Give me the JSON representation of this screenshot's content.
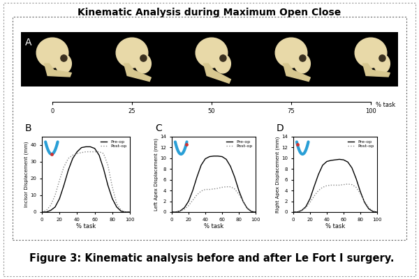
{
  "title": "Kinematic Analysis during Maximum Open Close",
  "panel_a": {
    "label": "A",
    "xlim": [
      0,
      100
    ],
    "xticks": [
      0,
      25,
      50,
      75,
      100
    ],
    "x_label": "% task"
  },
  "chart_data": [
    {
      "label": "B",
      "type": "line",
      "x": [
        0,
        5,
        10,
        15,
        20,
        25,
        30,
        35,
        40,
        45,
        50,
        55,
        60,
        65,
        70,
        75,
        80,
        85,
        90,
        95,
        100
      ],
      "x_label": "% task",
      "y_label": "Incisor Displacement (mm)",
      "xlim": [
        0,
        100
      ],
      "xticks": [
        0,
        20,
        40,
        60,
        80,
        100
      ],
      "ylim": [
        0,
        45
      ],
      "yticks": [
        0,
        10,
        20,
        30,
        40
      ],
      "legend": "upper right",
      "series": [
        {
          "name": "Pre-op",
          "color": "#000000",
          "line_style": "solid",
          "values": [
            0,
            0,
            1,
            3,
            8,
            16,
            25,
            32,
            36,
            38.5,
            39,
            39,
            38,
            34,
            26,
            16,
            8,
            3,
            0.5,
            0,
            0
          ]
        },
        {
          "name": "Post-op",
          "color": "#888888",
          "line_style": "dotted",
          "values": [
            0,
            1,
            4,
            10,
            19,
            27,
            32,
            34,
            35,
            35.5,
            36,
            36,
            36,
            36,
            35,
            28,
            15,
            5,
            1,
            0,
            0
          ]
        }
      ]
    },
    {
      "label": "C",
      "type": "line",
      "x": [
        0,
        5,
        10,
        15,
        20,
        25,
        30,
        35,
        40,
        45,
        50,
        55,
        60,
        65,
        70,
        75,
        80,
        85,
        90,
        95,
        100
      ],
      "x_label": "% task",
      "y_label": "Left Apex Displacement (mm)",
      "xlim": [
        0,
        100
      ],
      "xticks": [
        0,
        20,
        40,
        60,
        80,
        100
      ],
      "ylim": [
        0,
        14
      ],
      "yticks": [
        0,
        2,
        4,
        6,
        8,
        10,
        12,
        14
      ],
      "legend": "upper right",
      "series": [
        {
          "name": "Pre-op",
          "color": "#000000",
          "line_style": "solid",
          "values": [
            0,
            0,
            0.2,
            0.8,
            2,
            4,
            6.5,
            8.7,
            9.9,
            10.3,
            10.4,
            10.4,
            10.3,
            9.8,
            8.5,
            6.5,
            4,
            2,
            0.7,
            0.1,
            0
          ]
        },
        {
          "name": "Post-op",
          "color": "#888888",
          "line_style": "dotted",
          "values": [
            0,
            0,
            0.2,
            0.5,
            1.2,
            2.2,
            3.2,
            3.9,
            4.2,
            4.2,
            4.3,
            4.4,
            4.6,
            4.7,
            4.7,
            4.3,
            3.3,
            2,
            0.8,
            0.2,
            0
          ]
        }
      ]
    },
    {
      "label": "D",
      "type": "line",
      "x": [
        0,
        5,
        10,
        15,
        20,
        25,
        30,
        35,
        40,
        45,
        50,
        55,
        60,
        65,
        70,
        75,
        80,
        85,
        90,
        95,
        100
      ],
      "x_label": "% task",
      "y_label": "Right Apex Displacement (mm)",
      "xlim": [
        0,
        100
      ],
      "xticks": [
        0,
        20,
        40,
        60,
        80,
        100
      ],
      "ylim": [
        0,
        14
      ],
      "yticks": [
        0,
        2,
        4,
        6,
        8,
        10,
        12,
        14
      ],
      "legend": "upper right",
      "series": [
        {
          "name": "Pre-op",
          "color": "#000000",
          "line_style": "solid",
          "values": [
            0,
            0,
            0.3,
            1,
            2.5,
            4.8,
            7,
            8.7,
            9.4,
            9.6,
            9.7,
            9.8,
            9.7,
            9.3,
            8.2,
            6.2,
            3.8,
            1.8,
            0.6,
            0.1,
            0
          ]
        },
        {
          "name": "Post-op",
          "color": "#888888",
          "line_style": "dotted",
          "values": [
            0,
            0,
            0.3,
            0.8,
            1.8,
            3,
            4,
            4.6,
            4.9,
            5,
            5,
            5,
            5.1,
            5.2,
            5.1,
            4.6,
            3.4,
            2,
            0.8,
            0.2,
            0
          ]
        }
      ]
    }
  ],
  "caption": "Figure 3: Kinematic analysis before and after Le Fort I surgery."
}
